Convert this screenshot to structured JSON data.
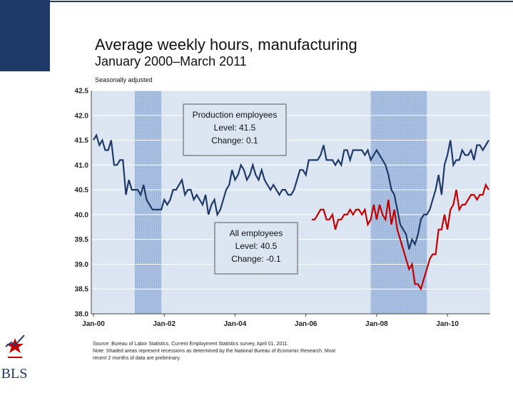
{
  "chart_data": {
    "type": "line",
    "title": "Average weekly hours, manufacturing",
    "subtitle": "January 2000–March 2011",
    "note": "Seasonally adjusted",
    "categories": [
      "Jan-00",
      null,
      null,
      null,
      null,
      null,
      null,
      null,
      null,
      null,
      null,
      null,
      null,
      null,
      null,
      null,
      null,
      null,
      null,
      null,
      null,
      null,
      null,
      null,
      "Jan-02",
      null,
      null,
      null,
      null,
      null,
      null,
      null,
      null,
      null,
      null,
      null,
      null,
      null,
      null,
      null,
      null,
      null,
      null,
      null,
      null,
      null,
      null,
      null,
      "Jan-04",
      null,
      null,
      null,
      null,
      null,
      null,
      null,
      null,
      null,
      null,
      null,
      null,
      null,
      null,
      null,
      null,
      null,
      null,
      null,
      null,
      null,
      null,
      null,
      "Jan-06",
      null,
      null,
      null,
      null,
      null,
      null,
      null,
      null,
      null,
      null,
      null,
      null,
      null,
      null,
      null,
      null,
      null,
      null,
      null,
      null,
      null,
      null,
      null,
      "Jan-08",
      null,
      null,
      null,
      null,
      null,
      null,
      null,
      null,
      null,
      null,
      null,
      null,
      null,
      null,
      null,
      null,
      null,
      null,
      null,
      null,
      null,
      null,
      null,
      "Jan-10",
      null,
      null,
      null,
      null,
      null,
      null,
      null,
      null,
      null,
      null,
      null,
      null,
      null,
      null
    ],
    "series": [
      {
        "name": "Production employees",
        "color": "#1f3a68",
        "values": [
          41.5,
          41.6,
          41.4,
          41.5,
          41.3,
          41.3,
          41.5,
          41.0,
          41.0,
          41.1,
          41.1,
          40.4,
          40.7,
          40.5,
          40.5,
          40.5,
          40.4,
          40.6,
          40.3,
          40.2,
          40.1,
          40.1,
          40.1,
          40.1,
          40.3,
          40.2,
          40.3,
          40.5,
          40.5,
          40.6,
          40.7,
          40.4,
          40.5,
          40.5,
          40.3,
          40.4,
          40.3,
          40.2,
          40.4,
          40.0,
          40.2,
          40.3,
          40.0,
          40.1,
          40.3,
          40.5,
          40.6,
          40.9,
          40.7,
          40.8,
          41.0,
          40.9,
          40.7,
          40.8,
          41.0,
          40.8,
          40.7,
          40.9,
          40.7,
          40.6,
          40.5,
          40.6,
          40.5,
          40.4,
          40.5,
          40.5,
          40.4,
          40.4,
          40.5,
          40.7,
          40.9,
          40.9,
          40.8,
          41.1,
          41.1,
          41.1,
          41.1,
          41.2,
          41.4,
          41.1,
          41.1,
          41.1,
          41.0,
          41.1,
          41.0,
          41.3,
          41.3,
          41.1,
          41.3,
          41.3,
          41.3,
          41.3,
          41.2,
          41.3,
          41.1,
          41.2,
          41.3,
          41.2,
          41.1,
          41.0,
          40.8,
          40.5,
          40.4,
          40.1,
          39.8,
          39.7,
          39.6,
          39.3,
          39.5,
          39.4,
          39.6,
          39.9,
          40.0,
          40.0,
          40.1,
          40.3,
          40.5,
          40.8,
          40.4,
          41.0,
          41.2,
          41.5,
          41.0,
          41.1,
          41.1,
          41.3,
          41.2,
          41.2,
          41.3,
          41.1,
          41.4,
          41.4,
          41.3,
          41.4,
          41.5
        ]
      },
      {
        "name": "All employees",
        "color": "#c00000",
        "values": [
          null,
          null,
          null,
          null,
          null,
          null,
          null,
          null,
          null,
          null,
          null,
          null,
          null,
          null,
          null,
          null,
          null,
          null,
          null,
          null,
          null,
          null,
          null,
          null,
          null,
          null,
          null,
          null,
          null,
          null,
          null,
          null,
          null,
          null,
          null,
          null,
          null,
          null,
          null,
          null,
          null,
          null,
          null,
          null,
          null,
          null,
          null,
          null,
          null,
          null,
          null,
          null,
          null,
          null,
          null,
          null,
          null,
          null,
          null,
          null,
          null,
          null,
          null,
          null,
          null,
          null,
          null,
          null,
          null,
          null,
          null,
          null,
          null,
          null,
          39.9,
          39.9,
          40.0,
          40.1,
          40.1,
          39.9,
          39.9,
          40.0,
          39.7,
          39.9,
          39.9,
          40.0,
          40.0,
          40.1,
          40.0,
          40.1,
          40.1,
          40.0,
          40.1,
          39.8,
          39.9,
          40.2,
          39.9,
          40.2,
          40.0,
          39.9,
          40.3,
          39.8,
          40.1,
          39.7,
          39.5,
          39.3,
          39.1,
          38.9,
          39.0,
          38.6,
          38.6,
          38.5,
          38.7,
          38.9,
          39.1,
          39.2,
          39.2,
          39.7,
          39.7,
          40.0,
          39.7,
          40.1,
          40.2,
          40.5,
          40.1,
          40.2,
          40.2,
          40.3,
          40.4,
          40.4,
          40.3,
          40.4,
          40.4,
          40.6,
          40.5
        ]
      }
    ],
    "annotations": [
      {
        "lines": [
          "Production employees",
          "Level: 41.5",
          "Change: 0.1"
        ]
      },
      {
        "lines": [
          "All employees",
          "Level: 40.5",
          "Change: -0.1"
        ]
      }
    ],
    "recessions": [
      {
        "start": 14,
        "end": 23
      },
      {
        "start": 94,
        "end": 113
      }
    ],
    "ylim": [
      38,
      42.5
    ],
    "yticks": [
      {
        "value": 38,
        "label": "38.0"
      },
      38.5,
      {
        "value": 39,
        "label": "39.0"
      },
      39.5,
      {
        "value": 40,
        "label": "40.0"
      },
      40.5,
      {
        "value": 41,
        "label": "41.0"
      },
      41.5,
      {
        "value": 42,
        "label": "42.0"
      },
      42.5
    ],
    "grid": true,
    "source": [
      "Source: Bureau of Labor Statistics, Current Employment Statistics survey, April 01, 2011.",
      "Note: Shaded areas represent recessions as determined by the National Bureau of Economic Research. Most",
      "recent 2 months of data are preliminary."
    ],
    "logo": "BLS"
  }
}
